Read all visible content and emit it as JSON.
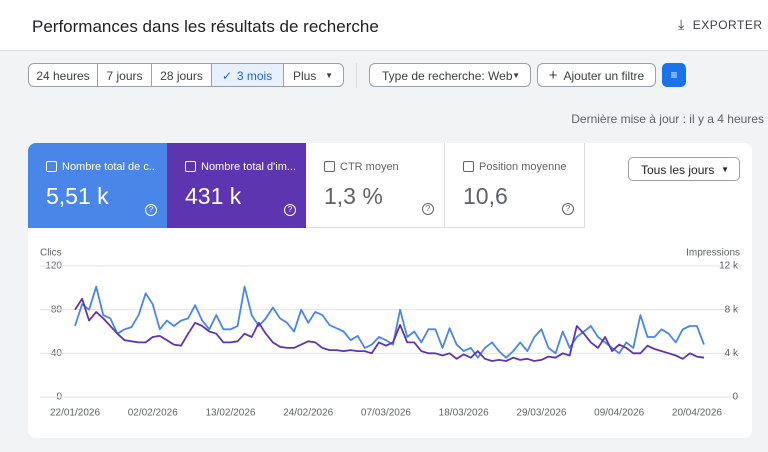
{
  "header": {
    "title": "Performances dans les résultats de recherche",
    "export": "EXPORTER"
  },
  "filters": {
    "ranges": [
      "24 heures",
      "7 jours",
      "28 jours",
      "3 mois",
      "Plus"
    ],
    "search_type": "Type de recherche: Web",
    "add_filter": "Ajouter un filtre"
  },
  "last_update": "Dernière mise à jour : il y a 4 heures",
  "metrics": [
    {
      "label": "Nombre total de c...",
      "value": "5,51 k"
    },
    {
      "label": "Nombre total d'im...",
      "value": "431 k"
    },
    {
      "label": "CTR moyen",
      "value": "1,3 %"
    },
    {
      "label": "Position moyenne",
      "value": "10,6"
    }
  ],
  "granularity": "Tous les jours",
  "chart_data": {
    "type": "line",
    "y_label": "Clics",
    "y2_label": "Impressions",
    "categories": [
      "22/01/2026",
      null,
      null,
      null,
      null,
      null,
      null,
      null,
      null,
      null,
      null,
      "02/02/2026",
      null,
      null,
      null,
      null,
      null,
      null,
      null,
      null,
      null,
      null,
      "13/02/2026",
      null,
      null,
      null,
      null,
      null,
      null,
      null,
      null,
      null,
      null,
      "24/02/2026",
      null,
      null,
      null,
      null,
      null,
      null,
      null,
      null,
      null,
      null,
      "07/03/2026",
      null,
      null,
      null,
      null,
      null,
      null,
      null,
      null,
      null,
      null,
      "18/03/2026",
      null,
      null,
      null,
      null,
      null,
      null,
      null,
      null,
      null,
      null,
      "29/03/2026",
      null,
      null,
      null,
      null,
      null,
      null,
      null,
      null,
      null,
      null,
      "09/04/2026",
      null,
      null,
      null,
      null,
      null,
      null,
      null,
      null,
      null,
      null,
      "20/04/2026",
      null
    ],
    "series": [
      {
        "color": "#4a86e8",
        "values": [
          65,
          85,
          80,
          101,
          75,
          72,
          58,
          62,
          64,
          75,
          95,
          85,
          62,
          70,
          65,
          70,
          72,
          84,
          70,
          62,
          75,
          62,
          62,
          65,
          101,
          75,
          65,
          72,
          82,
          72,
          68,
          60,
          80,
          68,
          78,
          75,
          66,
          63,
          60,
          52,
          56,
          45,
          48,
          55,
          52,
          48,
          80,
          55,
          60,
          50,
          62,
          62,
          45,
          63,
          48,
          42,
          45,
          36,
          45,
          50,
          42,
          36,
          42,
          50,
          42,
          55,
          62,
          45,
          40,
          60,
          45,
          55,
          60,
          65,
          55,
          50,
          45,
          40,
          50,
          45,
          75,
          55,
          55,
          62,
          58,
          50,
          62,
          65,
          65,
          48
        ]
      },
      {
        "color": "#5e35b1",
        "axis": "y2",
        "values": [
          8000,
          9000,
          7000,
          7800,
          7200,
          6500,
          5800,
          5200,
          5100,
          5000,
          5000,
          5500,
          5600,
          5200,
          4800,
          4700,
          5800,
          6800,
          6500,
          6000,
          5800,
          5000,
          5000,
          5100,
          5800,
          5500,
          6800,
          5800,
          5000,
          4600,
          4500,
          4500,
          4800,
          5100,
          5000,
          4500,
          4300,
          4300,
          4200,
          4300,
          4200,
          4200,
          4000,
          5000,
          4700,
          5000,
          6600,
          5000,
          5000,
          4200,
          4000,
          4000,
          3800,
          4000,
          3500,
          3900,
          3600,
          4200,
          3500,
          3300,
          3400,
          3300,
          3600,
          3400,
          3500,
          3300,
          3400,
          3700,
          3600,
          4000,
          3800,
          6500,
          5800,
          5000,
          4500,
          5500,
          4200,
          4800,
          4500,
          4000,
          4000,
          4700,
          4400,
          4200,
          4000,
          3800,
          3500,
          4000,
          3700,
          3600
        ]
      }
    ],
    "ylim": [
      0,
      120
    ],
    "yticks": [
      0,
      40,
      80,
      120
    ],
    "y2lim": [
      0,
      12000
    ],
    "y2ticks": [
      0,
      {
        "value": 4000,
        "label": "4 k"
      },
      {
        "value": 8000,
        "label": "8 k"
      },
      {
        "value": 12000,
        "label": "12 k"
      }
    ],
    "grid": true
  }
}
